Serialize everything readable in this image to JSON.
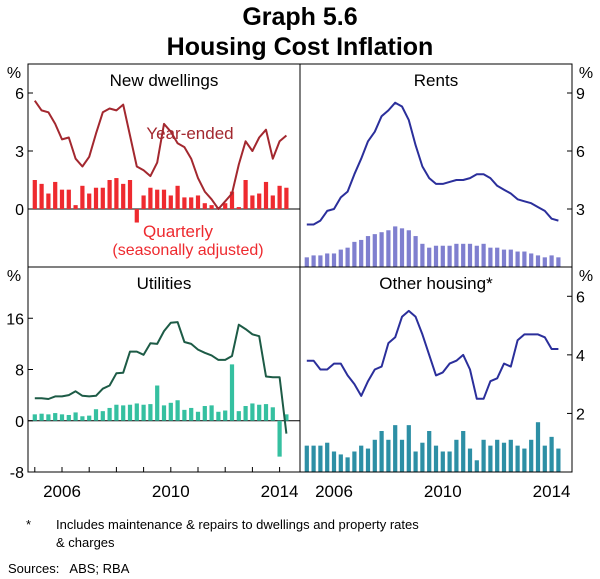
{
  "title": "Graph 5.6",
  "subtitle": "Housing Cost Inflation",
  "colors": {
    "year_ended_red": "#a3282f",
    "quarterly_red": "#ee2a2f",
    "blue_line": "#2b2f9b",
    "blue_bar": "#7f7fcf",
    "green_line": "#1d5b46",
    "green_bar": "#35c0a0",
    "teal_bar": "#2d8fa5"
  },
  "x_tick_labels": [
    "2006",
    "2010",
    "2014"
  ],
  "x_ticks_data": [
    2006,
    2010,
    2014
  ],
  "x_range": [
    2004.75,
    2014.75
  ],
  "chart_data": [
    {
      "type": "line",
      "panel": "new_dwellings",
      "title": "New dwellings",
      "ylabel": "%",
      "yaxis_side": "left",
      "ylim": [
        -3,
        7.5
      ],
      "yticks": [
        0,
        3,
        6
      ],
      "ytick_labels": [
        "0",
        "3",
        "6"
      ],
      "annotations": [
        "Year-ended",
        "Quarterly",
        "(seasonally adjusted)"
      ],
      "series": [
        {
          "name": "Year-ended",
          "kind": "line",
          "color": "#a3282f",
          "x": [
            2005.0,
            2005.25,
            2005.5,
            2005.75,
            2006.0,
            2006.25,
            2006.5,
            2006.75,
            2007.0,
            2007.25,
            2007.5,
            2007.75,
            2008.0,
            2008.25,
            2008.5,
            2008.75,
            2009.0,
            2009.25,
            2009.5,
            2009.75,
            2010.0,
            2010.25,
            2010.5,
            2010.75,
            2011.0,
            2011.25,
            2011.5,
            2011.75,
            2012.0,
            2012.25,
            2012.5,
            2012.75,
            2013.0,
            2013.25,
            2013.5,
            2013.75,
            2014.0,
            2014.25
          ],
          "values": [
            5.6,
            5.1,
            5.0,
            4.4,
            3.6,
            3.7,
            2.6,
            2.2,
            2.7,
            3.9,
            5.0,
            5.2,
            5.1,
            5.4,
            3.8,
            2.2,
            2.0,
            1.7,
            2.4,
            4.4,
            4.0,
            3.4,
            3.2,
            2.6,
            1.6,
            0.9,
            0.5,
            0.0,
            0.4,
            0.8,
            2.3,
            3.5,
            3.0,
            3.7,
            4.1,
            2.6,
            3.5,
            3.8
          ]
        },
        {
          "name": "Quarterly (seasonally adjusted)",
          "kind": "bar",
          "color": "#ee2a2f",
          "x": [
            2005.0,
            2005.25,
            2005.5,
            2005.75,
            2006.0,
            2006.25,
            2006.5,
            2006.75,
            2007.0,
            2007.25,
            2007.5,
            2007.75,
            2008.0,
            2008.25,
            2008.5,
            2008.75,
            2009.0,
            2009.25,
            2009.5,
            2009.75,
            2010.0,
            2010.25,
            2010.5,
            2010.75,
            2011.0,
            2011.25,
            2011.5,
            2011.75,
            2012.0,
            2012.25,
            2012.5,
            2012.75,
            2013.0,
            2013.25,
            2013.5,
            2013.75,
            2014.0,
            2014.25
          ],
          "values": [
            1.5,
            1.3,
            0.8,
            1.4,
            1.0,
            1.0,
            0.2,
            1.2,
            0.8,
            1.1,
            1.1,
            1.5,
            1.6,
            1.3,
            1.5,
            -0.7,
            0.7,
            1.1,
            1.0,
            1.0,
            0.7,
            1.2,
            0.6,
            0.6,
            0.7,
            0.3,
            0.2,
            0.1,
            0.3,
            0.9,
            0.1,
            1.5,
            0.7,
            0.8,
            1.4,
            0.7,
            1.2,
            1.1
          ]
        }
      ]
    },
    {
      "type": "line",
      "panel": "rents",
      "title": "Rents",
      "ylabel": "%",
      "yaxis_side": "right",
      "ylim": [
        0,
        10.5
      ],
      "yticks": [
        3,
        6,
        9
      ],
      "ytick_labels": [
        "3",
        "6",
        "9"
      ],
      "series": [
        {
          "name": "Year-ended",
          "kind": "line",
          "color": "#2b2f9b",
          "x": [
            2005.0,
            2005.25,
            2005.5,
            2005.75,
            2006.0,
            2006.25,
            2006.5,
            2006.75,
            2007.0,
            2007.25,
            2007.5,
            2007.75,
            2008.0,
            2008.25,
            2008.5,
            2008.75,
            2009.0,
            2009.25,
            2009.5,
            2009.75,
            2010.0,
            2010.25,
            2010.5,
            2010.75,
            2011.0,
            2011.25,
            2011.5,
            2011.75,
            2012.0,
            2012.25,
            2012.5,
            2012.75,
            2013.0,
            2013.25,
            2013.5,
            2013.75,
            2014.0,
            2014.25
          ],
          "values": [
            2.2,
            2.2,
            2.4,
            2.9,
            3.0,
            3.6,
            3.9,
            4.8,
            5.6,
            6.5,
            7.0,
            7.8,
            8.1,
            8.5,
            8.3,
            7.6,
            6.3,
            5.2,
            4.6,
            4.3,
            4.3,
            4.4,
            4.5,
            4.5,
            4.6,
            4.8,
            4.8,
            4.6,
            4.2,
            4.0,
            3.8,
            3.5,
            3.4,
            3.3,
            3.1,
            2.9,
            2.5,
            2.4
          ]
        },
        {
          "name": "Quarterly (seasonally adjusted)",
          "kind": "bar",
          "color": "#7f7fcf",
          "x": [
            2005.0,
            2005.25,
            2005.5,
            2005.75,
            2006.0,
            2006.25,
            2006.5,
            2006.75,
            2007.0,
            2007.25,
            2007.5,
            2007.75,
            2008.0,
            2008.25,
            2008.5,
            2008.75,
            2009.0,
            2009.25,
            2009.5,
            2009.75,
            2010.0,
            2010.25,
            2010.5,
            2010.75,
            2011.0,
            2011.25,
            2011.5,
            2011.75,
            2012.0,
            2012.25,
            2012.5,
            2012.75,
            2013.0,
            2013.25,
            2013.5,
            2013.75,
            2014.0,
            2014.25
          ],
          "values": [
            0.5,
            0.6,
            0.6,
            0.7,
            0.7,
            0.9,
            1.0,
            1.3,
            1.4,
            1.6,
            1.7,
            1.8,
            1.9,
            2.1,
            2.0,
            1.9,
            1.6,
            1.2,
            1.0,
            1.1,
            1.1,
            1.1,
            1.2,
            1.2,
            1.2,
            1.1,
            1.2,
            1.0,
            1.0,
            0.9,
            0.9,
            0.8,
            0.8,
            0.7,
            0.6,
            0.5,
            0.6,
            0.5
          ]
        }
      ]
    },
    {
      "type": "line",
      "panel": "utilities",
      "title": "Utilities",
      "ylabel": "%",
      "yaxis_side": "left",
      "ylim": [
        -8,
        24
      ],
      "yticks": [
        -8,
        0,
        8,
        16
      ],
      "ytick_labels": [
        "-8",
        "0",
        "8",
        "16"
      ],
      "series": [
        {
          "name": "Year-ended",
          "kind": "line",
          "color": "#1d5b46",
          "x": [
            2005.0,
            2005.25,
            2005.5,
            2005.75,
            2006.0,
            2006.25,
            2006.5,
            2006.75,
            2007.0,
            2007.25,
            2007.5,
            2007.75,
            2008.0,
            2008.25,
            2008.5,
            2008.75,
            2009.0,
            2009.25,
            2009.5,
            2009.75,
            2010.0,
            2010.25,
            2010.5,
            2010.75,
            2011.0,
            2011.25,
            2011.5,
            2011.75,
            2012.0,
            2012.25,
            2012.5,
            2012.75,
            2013.0,
            2013.25,
            2013.5,
            2013.75,
            2014.0,
            2014.25
          ],
          "values": [
            3.5,
            3.5,
            3.4,
            3.8,
            3.8,
            4.0,
            4.6,
            3.9,
            3.8,
            3.9,
            5.0,
            5.5,
            7.4,
            7.5,
            10.8,
            10.8,
            10.3,
            12.1,
            12.0,
            14.0,
            15.3,
            15.4,
            12.3,
            12.0,
            11.1,
            10.6,
            10.2,
            9.5,
            9.5,
            10.1,
            15.0,
            14.3,
            13.5,
            13.2,
            6.9,
            6.8,
            6.8,
            -2.0
          ]
        },
        {
          "name": "Quarterly (seasonally adjusted)",
          "kind": "bar",
          "color": "#35c0a0",
          "x": [
            2005.0,
            2005.25,
            2005.5,
            2005.75,
            2006.0,
            2006.25,
            2006.5,
            2006.75,
            2007.0,
            2007.25,
            2007.5,
            2007.75,
            2008.0,
            2008.25,
            2008.5,
            2008.75,
            2009.0,
            2009.25,
            2009.5,
            2009.75,
            2010.0,
            2010.25,
            2010.5,
            2010.75,
            2011.0,
            2011.25,
            2011.5,
            2011.75,
            2012.0,
            2012.25,
            2012.5,
            2012.75,
            2013.0,
            2013.25,
            2013.5,
            2013.75,
            2014.0,
            2014.25
          ],
          "values": [
            1.0,
            1.1,
            1.0,
            1.2,
            1.0,
            0.9,
            1.3,
            0.7,
            0.8,
            1.8,
            1.5,
            2.0,
            2.5,
            2.4,
            2.5,
            2.7,
            2.5,
            2.6,
            5.5,
            2.4,
            2.8,
            3.2,
            1.7,
            2.0,
            1.4,
            2.3,
            2.4,
            1.4,
            1.6,
            8.8,
            1.5,
            2.3,
            2.7,
            2.5,
            2.6,
            2.1,
            -5.6,
            1.0
          ]
        }
      ]
    },
    {
      "type": "line",
      "panel": "other_housing",
      "title": "Other housing*",
      "ylabel": "%",
      "yaxis_side": "right",
      "ylim": [
        0,
        7
      ],
      "yticks": [
        2,
        4,
        6
      ],
      "ytick_labels": [
        "2",
        "4",
        "6"
      ],
      "series": [
        {
          "name": "Year-ended",
          "kind": "line",
          "color": "#2b2f9b",
          "x": [
            2005.0,
            2005.25,
            2005.5,
            2005.75,
            2006.0,
            2006.25,
            2006.5,
            2006.75,
            2007.0,
            2007.25,
            2007.5,
            2007.75,
            2008.0,
            2008.25,
            2008.5,
            2008.75,
            2009.0,
            2009.25,
            2009.5,
            2009.75,
            2010.0,
            2010.25,
            2010.5,
            2010.75,
            2011.0,
            2011.25,
            2011.5,
            2011.75,
            2012.0,
            2012.25,
            2012.5,
            2012.75,
            2013.0,
            2013.25,
            2013.5,
            2013.75,
            2014.0,
            2014.25
          ],
          "values": [
            3.8,
            3.8,
            3.5,
            3.5,
            3.7,
            3.7,
            3.3,
            3.0,
            2.6,
            3.1,
            3.5,
            3.6,
            4.4,
            4.6,
            5.3,
            5.5,
            5.3,
            4.7,
            4.0,
            3.3,
            3.4,
            3.7,
            3.8,
            4.0,
            3.5,
            2.5,
            2.5,
            3.1,
            3.2,
            3.7,
            3.6,
            4.5,
            4.7,
            4.7,
            4.7,
            4.6,
            4.2,
            4.2
          ]
        },
        {
          "name": "Quarterly (seasonally adjusted)",
          "kind": "bar",
          "color": "#2d8fa5",
          "x": [
            2005.0,
            2005.25,
            2005.5,
            2005.75,
            2006.0,
            2006.25,
            2006.5,
            2006.75,
            2007.0,
            2007.25,
            2007.5,
            2007.75,
            2008.0,
            2008.25,
            2008.5,
            2008.75,
            2009.0,
            2009.25,
            2009.5,
            2009.75,
            2010.0,
            2010.25,
            2010.5,
            2010.75,
            2011.0,
            2011.25,
            2011.5,
            2011.75,
            2012.0,
            2012.25,
            2012.5,
            2012.75,
            2013.0,
            2013.25,
            2013.5,
            2013.75,
            2014.0,
            2014.25
          ],
          "values": [
            0.9,
            0.9,
            0.9,
            1.0,
            0.7,
            0.6,
            0.5,
            0.7,
            0.9,
            0.8,
            1.1,
            1.4,
            1.1,
            1.6,
            1.1,
            1.6,
            0.7,
            1.0,
            1.4,
            0.9,
            0.7,
            0.7,
            1.1,
            1.4,
            0.8,
            0.4,
            1.1,
            0.9,
            1.1,
            1.0,
            1.1,
            0.9,
            0.8,
            1.1,
            1.7,
            0.9,
            1.2,
            0.8
          ]
        }
      ]
    }
  ],
  "footnote": {
    "marker": "*",
    "line1": "Includes maintenance & repairs to dwellings and property rates",
    "line2": "& charges"
  },
  "sources": "Sources:   ABS; RBA"
}
